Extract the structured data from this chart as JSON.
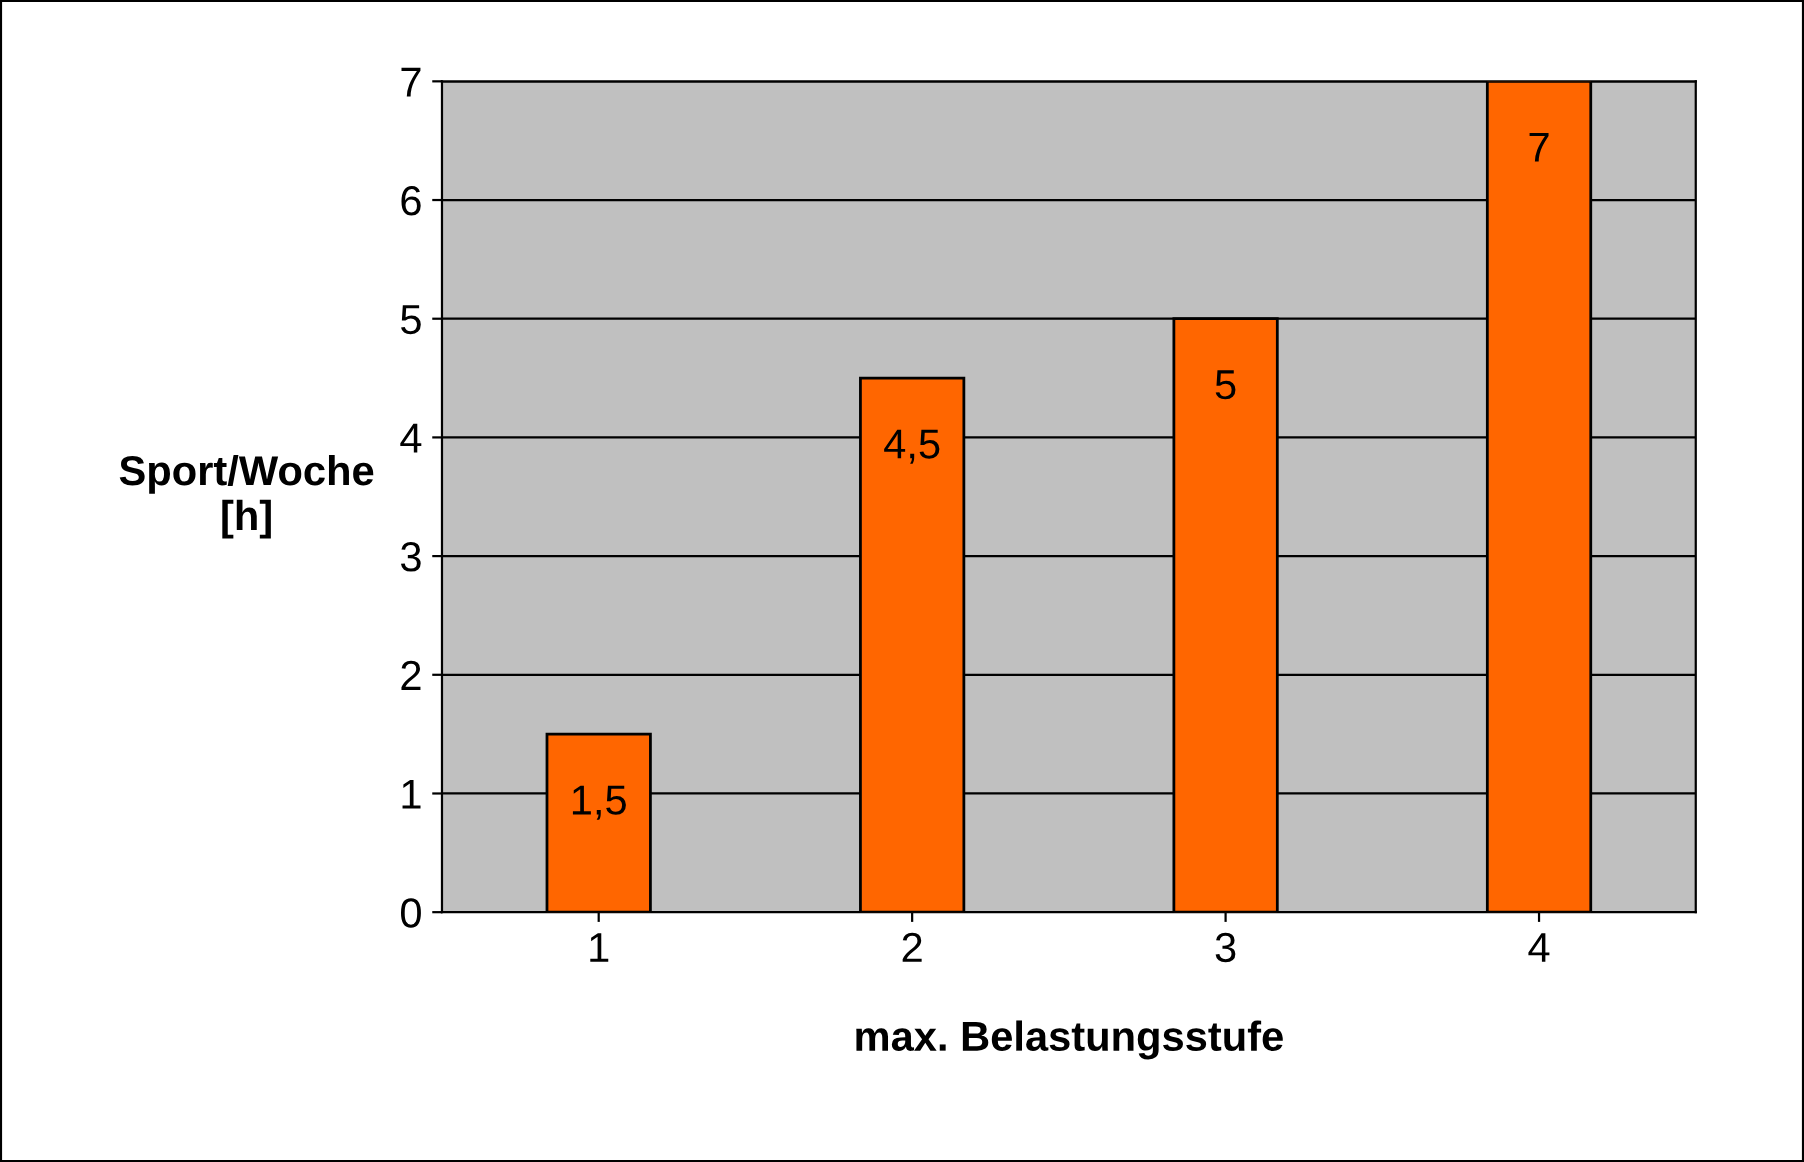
{
  "chart_data": {
    "type": "bar",
    "xlabel": "max. Belastungsstufe",
    "ylabel": "Sport/Woche\n[h]",
    "categories": [
      "1",
      "2",
      "3",
      "4"
    ],
    "values": [
      1.5,
      4.5,
      5,
      7
    ],
    "value_labels": [
      "1,5",
      "4,5",
      "5",
      "7"
    ],
    "color": "#ff6600",
    "ylim": [
      0,
      7
    ],
    "yticks": [
      0,
      1,
      2,
      3,
      4,
      5,
      6,
      7
    ],
    "grid": "y"
  }
}
